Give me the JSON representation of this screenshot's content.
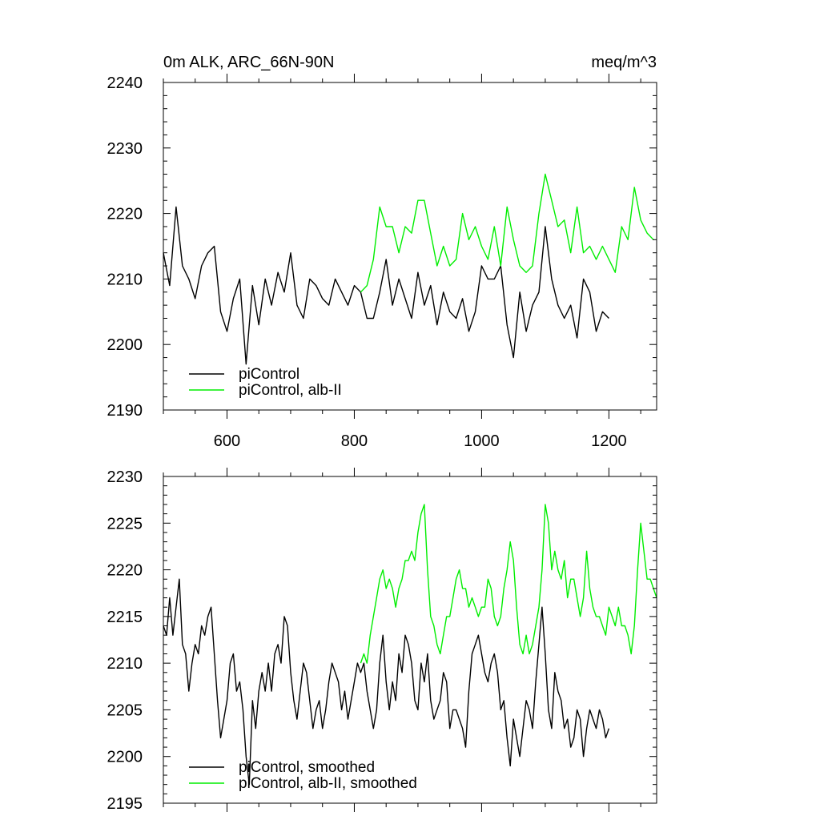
{
  "colors": {
    "control": "#000000",
    "albII": "#00ee00",
    "axis": "#000000",
    "background": "#ffffff"
  },
  "chart_data": [
    {
      "type": "line",
      "title": "0m ALK, ARC_66N-90N",
      "units": "meq/m^3",
      "xlim": [
        500,
        1275
      ],
      "ylim": [
        2190,
        2240
      ],
      "xticks": [
        600,
        800,
        1000,
        1200
      ],
      "yticks": [
        2190,
        2200,
        2210,
        2220,
        2230,
        2240
      ],
      "xtick_labels": [
        "600",
        "800",
        "1000",
        "1200"
      ],
      "ytick_labels": [
        "2190",
        "2200",
        "2210",
        "2220",
        "2230",
        "2240"
      ],
      "show_xtick_labels": true,
      "legend": [
        "piControl",
        "piControl, alb-II"
      ],
      "legend_position": "bottom-left",
      "series": [
        {
          "name": "piControl",
          "color": "#000000",
          "x": [
            500,
            510,
            520,
            530,
            540,
            550,
            560,
            570,
            580,
            590,
            600,
            610,
            620,
            630,
            640,
            650,
            660,
            670,
            680,
            690,
            700,
            710,
            720,
            730,
            740,
            750,
            760,
            770,
            780,
            790,
            800,
            810,
            820,
            830,
            840,
            850,
            860,
            870,
            880,
            890,
            900,
            910,
            920,
            930,
            940,
            950,
            960,
            970,
            980,
            990,
            1000,
            1010,
            1020,
            1030,
            1040,
            1050,
            1060,
            1070,
            1080,
            1090,
            1100,
            1110,
            1120,
            1130,
            1140,
            1150,
            1160,
            1170,
            1180,
            1190,
            1200
          ],
          "y": [
            2214,
            2209,
            2221,
            2212,
            2210,
            2207,
            2212,
            2214,
            2215,
            2205,
            2202,
            2207,
            2210,
            2197,
            2209,
            2203,
            2210,
            2206,
            2211,
            2208,
            2214,
            2206,
            2204,
            2210,
            2209,
            2207,
            2206,
            2210,
            2208,
            2206,
            2209,
            2208,
            2204,
            2204,
            2208,
            2213,
            2206,
            2210,
            2207,
            2204,
            2211,
            2206,
            2209,
            2203,
            2208,
            2205,
            2204,
            2207,
            2202,
            2205,
            2212,
            2210,
            2210,
            2212,
            2203,
            2198,
            2208,
            2202,
            2206,
            2208,
            2218,
            2210,
            2206,
            2204,
            2206,
            2201,
            2210,
            2208,
            2202,
            2205,
            2204
          ]
        },
        {
          "name": "piControl, alb-II",
          "color": "#00ee00",
          "x": [
            810,
            820,
            830,
            840,
            850,
            860,
            870,
            880,
            890,
            900,
            910,
            920,
            930,
            940,
            950,
            960,
            970,
            980,
            990,
            1000,
            1010,
            1020,
            1030,
            1040,
            1050,
            1060,
            1070,
            1080,
            1090,
            1100,
            1110,
            1120,
            1130,
            1140,
            1150,
            1160,
            1170,
            1180,
            1190,
            1200,
            1210,
            1220,
            1230,
            1240,
            1250,
            1260,
            1270
          ],
          "y": [
            2208,
            2209,
            2213,
            2221,
            2218,
            2218,
            2214,
            2218,
            2217,
            2222,
            2222,
            2217,
            2212,
            2215,
            2212,
            2213,
            2220,
            2216,
            2218,
            2215,
            2213,
            2218,
            2212,
            2221,
            2216,
            2212,
            2211,
            2212,
            2220,
            2226,
            2222,
            2218,
            2219,
            2214,
            2221,
            2214,
            2215,
            2213,
            2215,
            2213,
            2211,
            2218,
            2216,
            2224,
            2219,
            2217,
            2216
          ]
        }
      ]
    },
    {
      "type": "line",
      "title": "",
      "units": "",
      "xlim": [
        500,
        1275
      ],
      "ylim": [
        2195,
        2230
      ],
      "xticks": [
        600,
        800,
        1000,
        1200
      ],
      "yticks": [
        2195,
        2200,
        2205,
        2210,
        2215,
        2220,
        2225,
        2230
      ],
      "xtick_labels": [],
      "ytick_labels": [
        "2195",
        "2200",
        "2205",
        "2210",
        "2215",
        "2220",
        "2225",
        "2230"
      ],
      "show_xtick_labels": false,
      "legend": [
        "piControl, smoothed",
        "piControl, alb-II, smoothed"
      ],
      "legend_position": "bottom-left",
      "series": [
        {
          "name": "piControl, smoothed",
          "color": "#000000",
          "x": [
            500,
            505,
            510,
            515,
            520,
            525,
            530,
            535,
            540,
            545,
            550,
            555,
            560,
            565,
            570,
            575,
            580,
            585,
            590,
            595,
            600,
            605,
            610,
            615,
            620,
            625,
            630,
            635,
            640,
            645,
            650,
            655,
            660,
            665,
            670,
            675,
            680,
            685,
            690,
            695,
            700,
            705,
            710,
            715,
            720,
            725,
            730,
            735,
            740,
            745,
            750,
            755,
            760,
            765,
            770,
            775,
            780,
            785,
            790,
            795,
            800,
            805,
            810,
            815,
            820,
            825,
            830,
            835,
            840,
            845,
            850,
            855,
            860,
            865,
            870,
            875,
            880,
            885,
            890,
            895,
            900,
            905,
            910,
            915,
            920,
            925,
            930,
            935,
            940,
            945,
            950,
            955,
            960,
            965,
            970,
            975,
            980,
            985,
            990,
            995,
            1000,
            1005,
            1010,
            1015,
            1020,
            1025,
            1030,
            1035,
            1040,
            1045,
            1050,
            1055,
            1060,
            1065,
            1070,
            1075,
            1080,
            1085,
            1090,
            1095,
            1100,
            1105,
            1110,
            1115,
            1120,
            1125,
            1130,
            1135,
            1140,
            1145,
            1150,
            1155,
            1160,
            1165,
            1170,
            1175,
            1180,
            1185,
            1190,
            1195,
            1200
          ],
          "y": [
            2214,
            2213,
            2217,
            2213,
            2216,
            2219,
            2212,
            2211,
            2207,
            2210,
            2212,
            2211,
            2214,
            2213,
            2215,
            2216,
            2211,
            2206,
            2202,
            2204,
            2206,
            2210,
            2211,
            2207,
            2208,
            2205,
            2200,
            2197,
            2206,
            2203,
            2207,
            2209,
            2207,
            2210,
            2207,
            2211,
            2212,
            2210,
            2215,
            2214,
            2209,
            2206,
            2204,
            2207,
            2210,
            2209,
            2206,
            2203,
            2205,
            2206,
            2203,
            2205,
            2208,
            2210,
            2209,
            2208,
            2205,
            2207,
            2204,
            2206,
            2208,
            2210,
            2209,
            2210,
            2207,
            2205,
            2203,
            2205,
            2210,
            2213,
            2208,
            2205,
            2208,
            2206,
            2211,
            2209,
            2213,
            2212,
            2210,
            2206,
            2205,
            2210,
            2208,
            2211,
            2206,
            2204,
            2205,
            2206,
            2209,
            2208,
            2203,
            2205,
            2205,
            2204,
            2203,
            2201,
            2207,
            2211,
            2212,
            2213,
            2211,
            2209,
            2208,
            2210,
            2211,
            2209,
            2205,
            2206,
            2202,
            2199,
            2204,
            2202,
            2200,
            2203,
            2206,
            2205,
            2203,
            2208,
            2212,
            2216,
            2211,
            2205,
            2203,
            2209,
            2207,
            2206,
            2203,
            2204,
            2201,
            2202,
            2205,
            2204,
            2200,
            2203,
            2205,
            2204,
            2203,
            2205,
            2204,
            2202,
            2203
          ]
        },
        {
          "name": "piControl, alb-II, smoothed",
          "color": "#00ee00",
          "x": [
            810,
            815,
            820,
            825,
            830,
            835,
            840,
            845,
            850,
            855,
            860,
            865,
            870,
            875,
            880,
            885,
            890,
            895,
            900,
            905,
            910,
            915,
            920,
            925,
            930,
            935,
            940,
            945,
            950,
            955,
            960,
            965,
            970,
            975,
            980,
            985,
            990,
            995,
            1000,
            1005,
            1010,
            1015,
            1020,
            1025,
            1030,
            1035,
            1040,
            1045,
            1050,
            1055,
            1060,
            1065,
            1070,
            1075,
            1080,
            1085,
            1090,
            1095,
            1100,
            1105,
            1110,
            1115,
            1120,
            1125,
            1130,
            1135,
            1140,
            1145,
            1150,
            1155,
            1160,
            1165,
            1170,
            1175,
            1180,
            1185,
            1190,
            1195,
            1200,
            1205,
            1210,
            1215,
            1220,
            1225,
            1230,
            1235,
            1240,
            1245,
            1250,
            1255,
            1260,
            1265,
            1270,
            1275
          ],
          "y": [
            2210,
            2211,
            2210,
            2213,
            2215,
            2217,
            2219,
            2220,
            2218,
            2219,
            2218,
            2216,
            2218,
            2219,
            2221,
            2221,
            2222,
            2221,
            2224,
            2226,
            2227,
            2220,
            2215,
            2214,
            2212,
            2211,
            2213,
            2215,
            2215,
            2217,
            2219,
            2220,
            2218,
            2218,
            2216,
            2217,
            2216,
            2215,
            2216,
            2216,
            2219,
            2218,
            2215,
            2214,
            2215,
            2218,
            2220,
            2223,
            2221,
            2216,
            2212,
            2211,
            2213,
            2211,
            2212,
            2214,
            2216,
            2220,
            2227,
            2225,
            2220,
            2222,
            2220,
            2219,
            2221,
            2217,
            2219,
            2219,
            2217,
            2215,
            2217,
            2222,
            2218,
            2216,
            2215,
            2215,
            2214,
            2213,
            2216,
            2215,
            2214,
            2216,
            2214,
            2214,
            2213,
            2211,
            2214,
            2220,
            2225,
            2222,
            2219,
            2219,
            2218,
            2217
          ]
        }
      ]
    }
  ]
}
